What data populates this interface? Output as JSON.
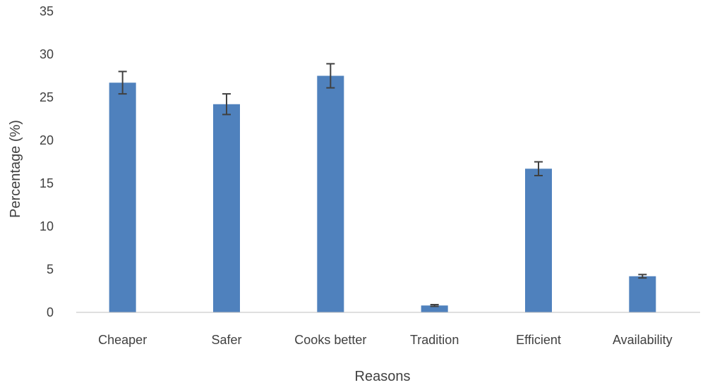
{
  "chart_data": {
    "type": "bar",
    "title": "",
    "xlabel": "Reasons",
    "ylabel": "Percentage (%)",
    "categories": [
      "Cheaper",
      "Safer",
      "Cooks better",
      "Tradition",
      "Efficient",
      "Availability"
    ],
    "values": [
      26.7,
      24.2,
      27.5,
      0.8,
      16.7,
      4.2
    ],
    "error_bars": [
      1.3,
      1.2,
      1.4,
      0.1,
      0.8,
      0.2
    ],
    "ylim": [
      0,
      35
    ],
    "yticks": [
      0,
      5,
      10,
      15,
      20,
      25,
      30,
      35
    ],
    "grid": false,
    "legend": "none",
    "bar_color": "#4f81bd",
    "error_bar_color": "#404040",
    "axis_color": "#bfbfbf"
  }
}
